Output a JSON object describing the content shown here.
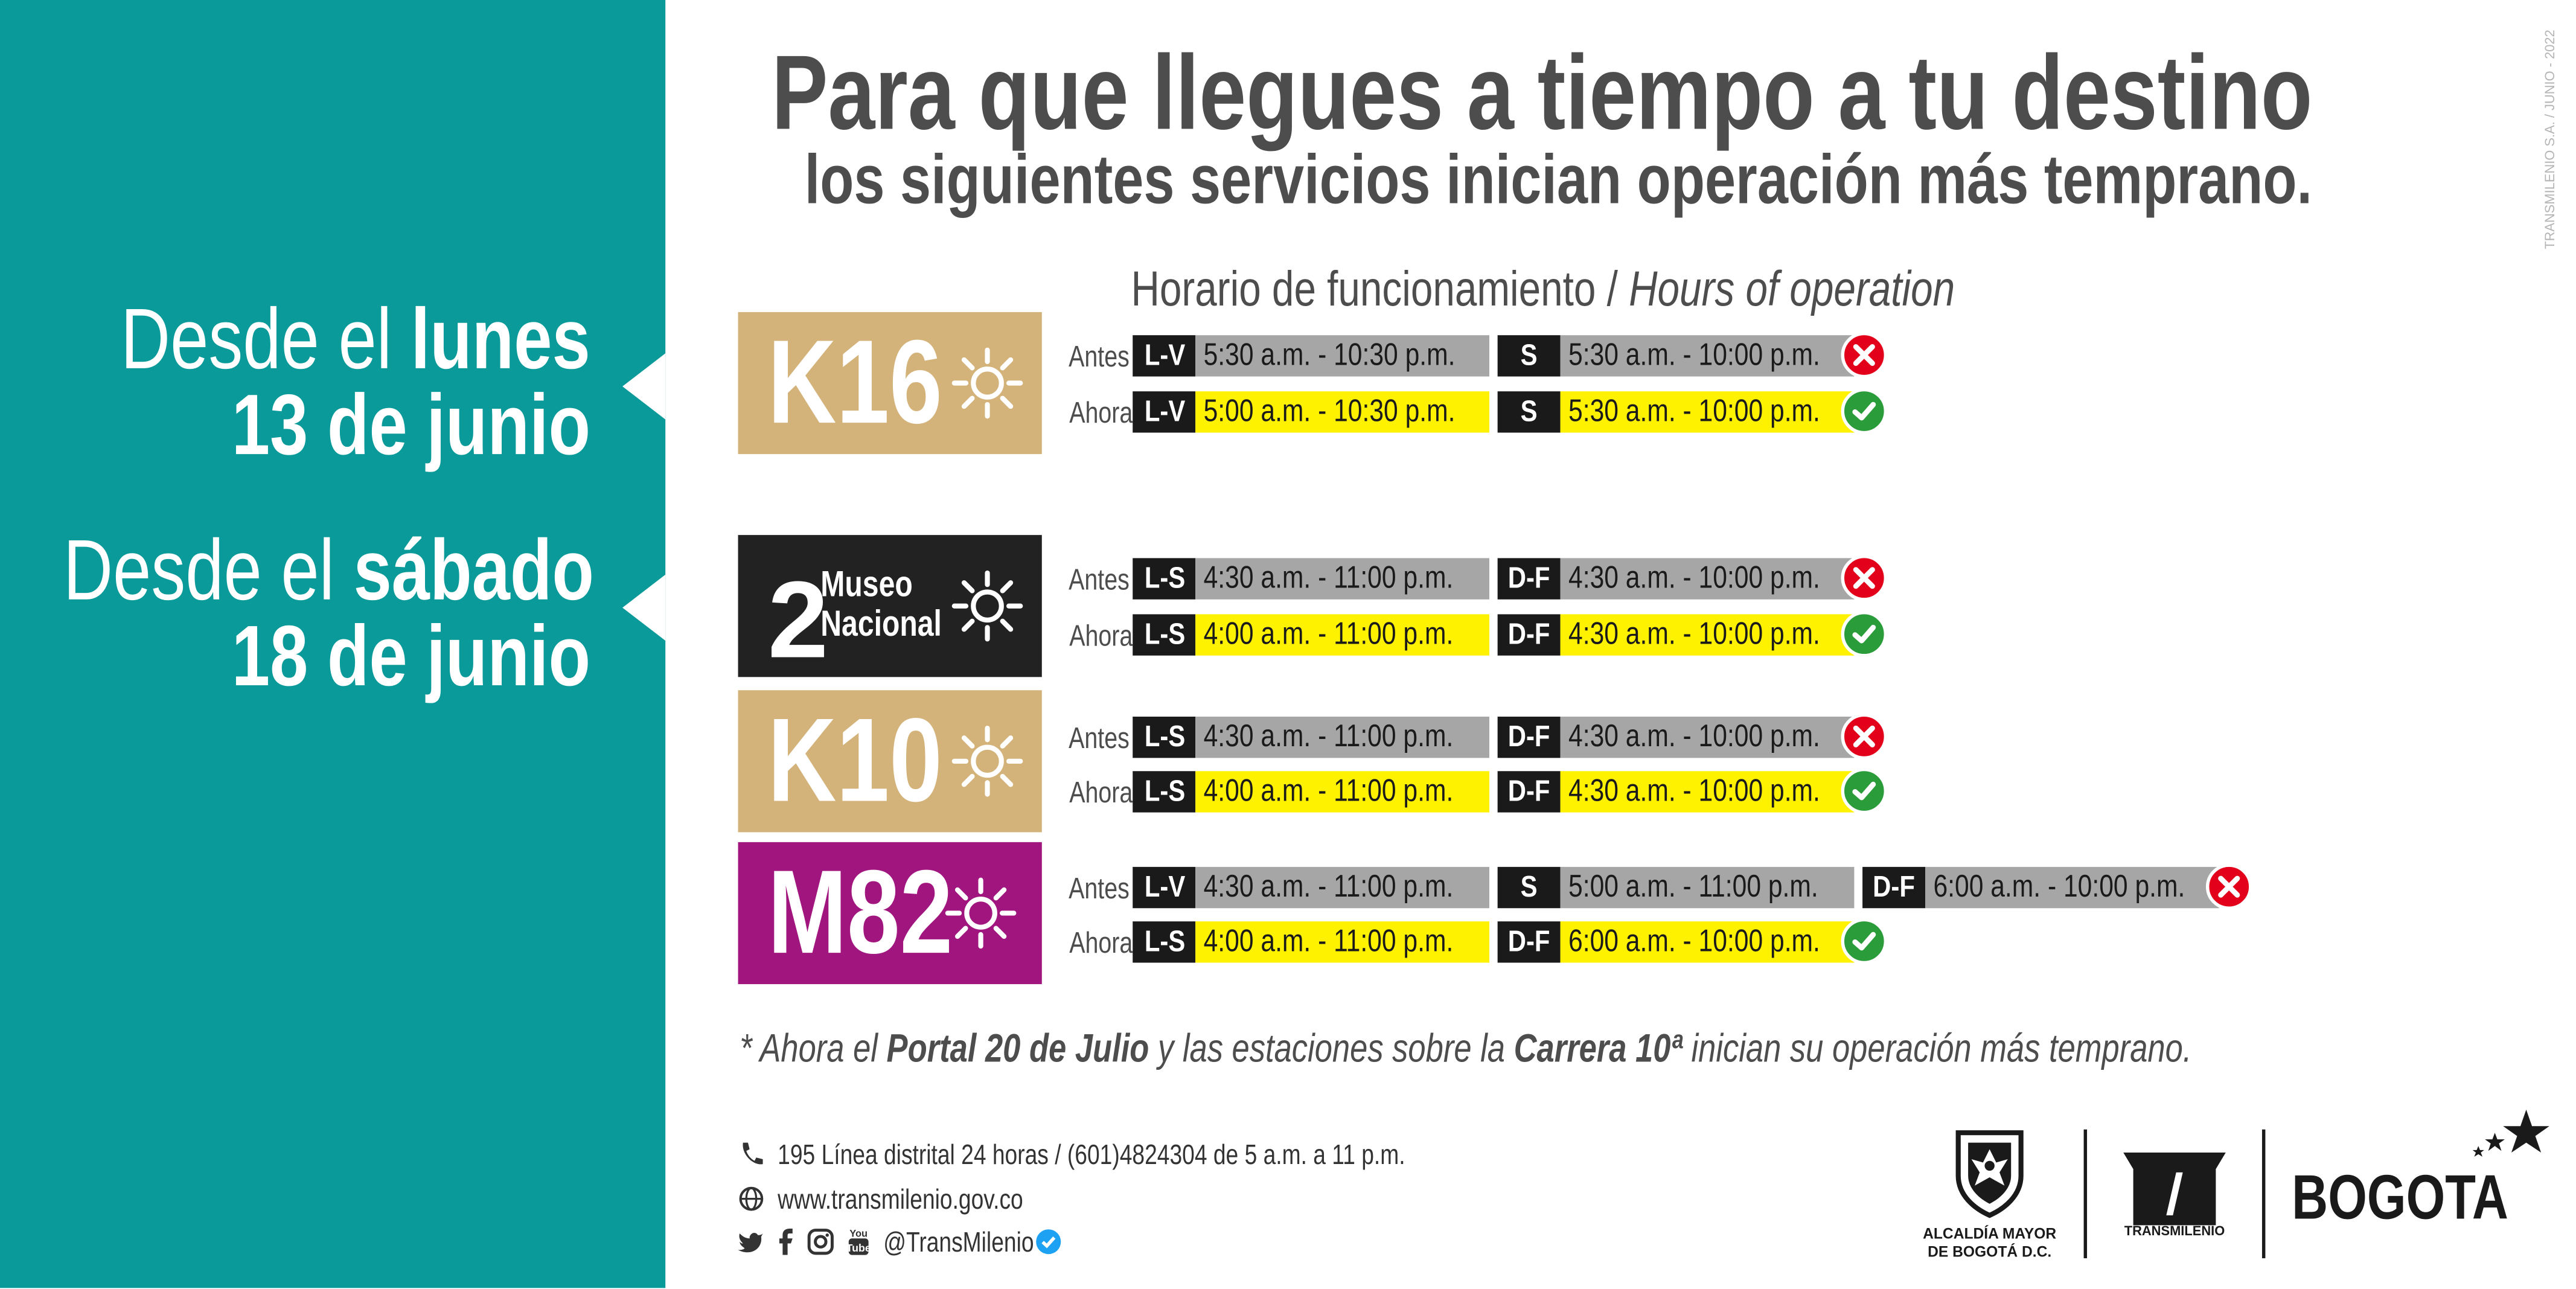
{
  "header": {
    "title": "Para que llegues a tiempo a tu destino",
    "subtitle": "los siguientes servicios inician operación más temprano.",
    "watermark": "TRANSMILENIO S.A. / JUNIO - 2022",
    "hours_label": "Horario de funcionamiento /",
    "hours_label_en": "Hours of operation"
  },
  "left_panel": {
    "background": "#0a9a9a",
    "date1_pre": "Desde el ",
    "date1_bold": "lunes",
    "date1_line2": "13 de junio",
    "date2_pre": "Desde el ",
    "date2_bold": "sábado",
    "date2_line2": "18 de junio"
  },
  "labels": {
    "before": "Antes",
    "now": "Ahora"
  },
  "routes": [
    {
      "code": "K16",
      "color": "#d4b37b",
      "antes": [
        {
          "days": "L-V",
          "hours": "5:30 a.m. - 10:30 p.m."
        },
        {
          "days": "S",
          "hours": "5:30 a.m. - 10:00 p.m."
        }
      ],
      "ahora": [
        {
          "days": "L-V",
          "hours": "5:00 a.m. - 10:30 p.m."
        },
        {
          "days": "S",
          "hours": "5:30 a.m. - 10:00 p.m."
        }
      ]
    },
    {
      "code": "2",
      "name_line1": "Museo",
      "name_line2": "Nacional",
      "color": "#222222",
      "antes": [
        {
          "days": "L-S",
          "hours": "4:30 a.m. - 11:00 p.m."
        },
        {
          "days": "D-F",
          "hours": "4:30 a.m. - 10:00 p.m."
        }
      ],
      "ahora": [
        {
          "days": "L-S",
          "hours": "4:00 a.m. - 11:00 p.m."
        },
        {
          "days": "D-F",
          "hours": "4:30 a.m. - 10:00 p.m."
        }
      ]
    },
    {
      "code": "K10",
      "color": "#d4b37b",
      "antes": [
        {
          "days": "L-S",
          "hours": "4:30 a.m. - 11:00 p.m."
        },
        {
          "days": "D-F",
          "hours": "4:30 a.m. - 10:00 p.m."
        }
      ],
      "ahora": [
        {
          "days": "L-S",
          "hours": "4:00 a.m. - 11:00 p.m."
        },
        {
          "days": "D-F",
          "hours": "4:30 a.m. - 10:00 p.m."
        }
      ]
    },
    {
      "code": "M82",
      "color": "#a1157f",
      "antes": [
        {
          "days": "L-V",
          "hours": "4:30 a.m. - 11:00 p.m."
        },
        {
          "days": "S",
          "hours": "5:00 a.m. - 11:00 p.m."
        },
        {
          "days": "D-F",
          "hours": "6:00 a.m. - 10:00 p.m."
        }
      ],
      "ahora": [
        {
          "days": "L-S",
          "hours": "4:00 a.m. - 11:00 p.m."
        },
        {
          "days": "D-F",
          "hours": "6:00 a.m. - 10:00 p.m."
        }
      ]
    }
  ],
  "status_colors": {
    "antes": "#e2001a",
    "ahora": "#2a9d3a"
  },
  "note": {
    "p1": "* Ahora el ",
    "b1": "Portal 20 de Julio",
    "p2": " y las estaciones sobre la ",
    "b2": "Carrera 10ª",
    "p3": " inician su operación más temprano."
  },
  "contact": {
    "phone": "195 Línea distrital 24 horas / (601)4824304 de 5 a.m. a 11 p.m.",
    "web": "www.transmilenio.gov.co",
    "social": "@TransMilenio",
    "social_icons": [
      "twitter-icon",
      "facebook-icon",
      "instagram-icon",
      "youtube-icon"
    ]
  },
  "logos": {
    "alcaldia_line1": "ALCALDÍA MAYOR",
    "alcaldia_line2": "DE BOGOTÁ D.C.",
    "transmilenio": "TRANSMILENIO",
    "bogota": "BOGOTA"
  }
}
